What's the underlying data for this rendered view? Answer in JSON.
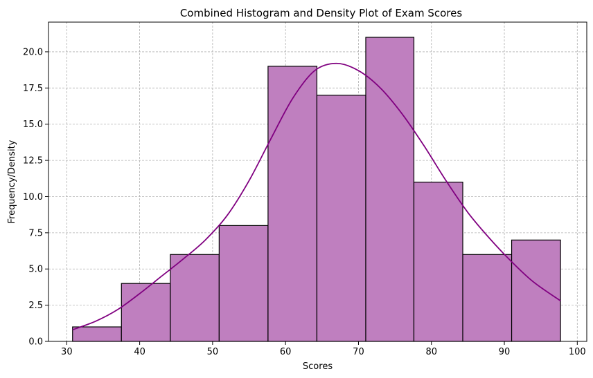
{
  "chart_data": {
    "type": "bar",
    "title": "Combined Histogram and Density Plot of Exam Scores",
    "xlabel": "Scores",
    "ylabel": "Frequency/Density",
    "xlim": [
      27.5,
      101.3
    ],
    "ylim": [
      0,
      22.05
    ],
    "xticks": [
      30,
      40,
      50,
      60,
      70,
      80,
      90,
      100
    ],
    "xtick_labels": [
      "30",
      "40",
      "50",
      "60",
      "70",
      "80",
      "90",
      "100"
    ],
    "yticks": [
      0,
      2.5,
      5,
      7.5,
      10,
      12.5,
      15,
      17.5,
      20
    ],
    "ytick_labels": [
      "0.0",
      "2.5",
      "5.0",
      "7.5",
      "10.0",
      "12.5",
      "15.0",
      "17.5",
      "20.0"
    ],
    "grid": true,
    "bins": [
      {
        "start": 30.8,
        "end": 37.5,
        "count": 1
      },
      {
        "start": 37.5,
        "end": 44.2,
        "count": 4
      },
      {
        "start": 44.2,
        "end": 50.9,
        "count": 6
      },
      {
        "start": 50.9,
        "end": 57.6,
        "count": 8
      },
      {
        "start": 57.6,
        "end": 64.3,
        "count": 19
      },
      {
        "start": 64.3,
        "end": 71.0,
        "count": 17
      },
      {
        "start": 71.0,
        "end": 77.6,
        "count": 21
      },
      {
        "start": 77.6,
        "end": 84.3,
        "count": 11
      },
      {
        "start": 84.3,
        "end": 91.0,
        "count": 6
      },
      {
        "start": 91.0,
        "end": 97.7,
        "count": 7
      }
    ],
    "density": {
      "x": [
        30.8,
        34,
        37,
        40,
        43,
        46,
        49,
        52,
        55,
        58,
        61,
        64,
        67,
        70,
        73,
        76,
        79,
        82,
        85,
        88,
        91,
        94,
        97.7
      ],
      "y": [
        0.8,
        1.4,
        2.2,
        3.3,
        4.5,
        5.7,
        7.0,
        8.7,
        11.1,
        14.0,
        16.8,
        18.7,
        19.2,
        18.7,
        17.5,
        15.7,
        13.5,
        11.1,
        8.9,
        7.1,
        5.5,
        4.1,
        2.8
      ]
    },
    "colors": {
      "bar_fill": "#bf7fbf",
      "bar_edge": "#000000",
      "density_line": "#800080",
      "grid": "#b0b0b0"
    }
  }
}
